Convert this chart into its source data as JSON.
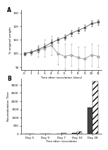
{
  "panel_a": {
    "days": [
      0,
      1,
      2,
      3,
      4,
      5,
      6,
      7,
      8,
      9,
      10,
      11
    ],
    "virus_mean": [
      100,
      101,
      102,
      104,
      106,
      100,
      98,
      99,
      97,
      96,
      99,
      98
    ],
    "virus_sd": [
      1,
      2,
      4,
      6,
      7,
      8,
      9,
      8,
      8,
      9,
      8,
      8
    ],
    "mock_mean": [
      100,
      101,
      103,
      105,
      108,
      110,
      112,
      115,
      117,
      119,
      122,
      123
    ],
    "mock_sd": [
      1,
      1,
      2,
      2,
      2,
      2,
      2,
      2,
      2,
      2,
      2,
      2
    ],
    "ylabel": "% original weight",
    "xlabel": "Time after inoculation (days)",
    "ylim": [
      88,
      132
    ],
    "yticks": [
      90,
      100,
      110,
      120,
      130
    ],
    "label": "A"
  },
  "panel_b": {
    "days": [
      "Day 5",
      "Day 9",
      "Day 7",
      "Day 10",
      "Day 28"
    ],
    "mock_values": [
      10,
      10,
      20,
      40,
      1600
    ],
    "virus_values": [
      10,
      20,
      80,
      160,
      3200
    ],
    "ylabel": "Neutralization Titer",
    "xlabel": "Time after inoculation",
    "ylim": [
      0,
      3400
    ],
    "yticks": [
      0,
      500,
      1000,
      1500,
      2000,
      2500,
      3000
    ],
    "label": "B"
  },
  "mock_color": "#555555",
  "virus_color_line": "#999999",
  "bar_mock_color": "#444444",
  "background": "#ffffff"
}
